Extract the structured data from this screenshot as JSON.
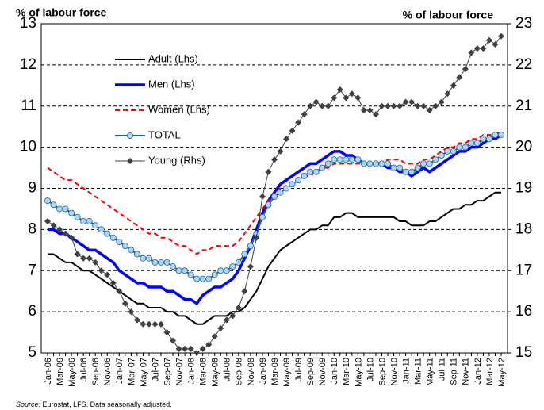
{
  "chart_data": {
    "type": "line",
    "y_label": "% of labour force",
    "y2_label": "% of labour force",
    "source": "Source:",
    "note": "Eurostat, LFS. Data seasonally adjusted.",
    "categories": [
      "Jan-06",
      null,
      "Mar-06",
      null,
      "May-06",
      null,
      "Jul-06",
      null,
      "Sep-06",
      null,
      "Nov-06",
      null,
      "Jan-07",
      null,
      "Mar-07",
      null,
      "May-07",
      null,
      "Jul-07",
      null,
      "Sep-07",
      null,
      "Nov-07",
      null,
      "Jan-08",
      null,
      "Mar-08",
      null,
      "May-08",
      null,
      "Jul-08",
      null,
      "Sep-08",
      null,
      "Nov-08",
      null,
      "Jan-09",
      null,
      "Mar-09",
      null,
      "May-09",
      null,
      "Jul-09",
      null,
      "Sep-09",
      null,
      "Nov-09",
      null,
      "Jan-10",
      null,
      "Mar-10",
      null,
      "May-10",
      null,
      "Jul-10",
      null,
      "Sep-10",
      null,
      "Nov-10",
      null,
      "Jan-11",
      null,
      "Mar-11",
      null,
      "May-11",
      null,
      "Jul-11",
      null,
      "Sep-11",
      null,
      "Nov-11",
      null,
      "Jan-12",
      null,
      "Mar-12",
      null,
      "May-12"
    ],
    "ylim": [
      5,
      13
    ],
    "yticks": [
      5,
      6,
      7,
      8,
      9,
      10,
      11,
      12,
      13
    ],
    "y2lim": [
      15,
      23
    ],
    "y2ticks": [
      15,
      16,
      17,
      18,
      19,
      20,
      21,
      22,
      23
    ],
    "grid": true,
    "legend": "upper left",
    "series": [
      {
        "name": "Adult (Lhs)",
        "color": "#000000",
        "line_width": 2,
        "values": [
          7.4,
          7.4,
          7.3,
          7.2,
          7.2,
          7.1,
          7.0,
          7.0,
          6.9,
          6.8,
          6.7,
          6.6,
          6.5,
          6.4,
          6.3,
          6.2,
          6.2,
          6.1,
          6.1,
          6.1,
          6.0,
          6.0,
          5.9,
          5.9,
          5.8,
          5.7,
          5.7,
          5.8,
          5.9,
          5.9,
          5.9,
          6.0,
          6.0,
          6.1,
          6.3,
          6.5,
          6.8,
          7.1,
          7.3,
          7.5,
          7.6,
          7.7,
          7.8,
          7.9,
          8.0,
          8.0,
          8.1,
          8.1,
          8.3,
          8.3,
          8.4,
          8.4,
          8.3,
          8.3,
          8.3,
          8.3,
          8.3,
          8.3,
          8.3,
          8.2,
          8.2,
          8.1,
          8.1,
          8.1,
          8.2,
          8.2,
          8.3,
          8.4,
          8.5,
          8.5,
          8.6,
          8.6,
          8.7,
          8.7,
          8.8,
          8.9,
          8.9
        ]
      },
      {
        "name": "Men (Lhs)",
        "color": "#0000ff",
        "line_width": 3.5,
        "values": [
          8.0,
          8.0,
          7.9,
          7.9,
          7.8,
          7.7,
          7.6,
          7.5,
          7.5,
          7.4,
          7.3,
          7.2,
          7.0,
          6.9,
          6.8,
          6.7,
          6.7,
          6.6,
          6.6,
          6.6,
          6.5,
          6.5,
          6.4,
          6.3,
          6.3,
          6.2,
          6.4,
          6.5,
          6.6,
          6.6,
          6.7,
          6.8,
          7.0,
          7.3,
          7.6,
          8.0,
          8.4,
          8.7,
          8.9,
          9.1,
          9.2,
          9.3,
          9.4,
          9.5,
          9.6,
          9.6,
          9.7,
          9.8,
          9.9,
          9.9,
          9.8,
          9.8,
          9.7,
          9.6,
          9.6,
          9.6,
          9.6,
          9.5,
          9.5,
          9.4,
          9.4,
          9.3,
          9.4,
          9.5,
          9.4,
          9.5,
          9.6,
          9.7,
          9.8,
          9.9,
          9.9,
          10.0,
          10.0,
          10.1,
          10.2,
          10.2,
          10.3
        ]
      },
      {
        "name": "Women (Lhs)",
        "color": "#ff0000",
        "line_width": 2,
        "dashed": true,
        "values": [
          9.5,
          9.4,
          9.3,
          9.2,
          9.2,
          9.1,
          9.0,
          8.9,
          8.8,
          8.7,
          8.6,
          8.5,
          8.4,
          8.3,
          8.2,
          8.1,
          8.0,
          7.9,
          7.9,
          7.8,
          7.8,
          7.7,
          7.6,
          7.6,
          7.5,
          7.4,
          7.5,
          7.5,
          7.6,
          7.6,
          7.6,
          7.6,
          7.7,
          7.9,
          8.1,
          8.3,
          8.5,
          8.7,
          8.9,
          9.0,
          9.0,
          9.1,
          9.2,
          9.3,
          9.3,
          9.4,
          9.5,
          9.5,
          9.6,
          9.6,
          9.6,
          9.6,
          9.6,
          9.6,
          9.6,
          9.6,
          9.6,
          9.7,
          9.7,
          9.7,
          9.6,
          9.6,
          9.6,
          9.7,
          9.7,
          9.8,
          9.9,
          10.0,
          10.0,
          10.1,
          10.1,
          10.2,
          10.2,
          10.3,
          10.3,
          10.3,
          10.4
        ]
      },
      {
        "name": "TOTAL",
        "color": "#1f5fa8",
        "marker": "circle",
        "marker_color": "#a9d8f0",
        "line_width": 2,
        "values": [
          8.7,
          8.6,
          8.5,
          8.5,
          8.4,
          8.3,
          8.2,
          8.2,
          8.1,
          8.0,
          7.9,
          7.8,
          7.7,
          7.6,
          7.5,
          7.4,
          7.3,
          7.3,
          7.2,
          7.2,
          7.2,
          7.1,
          7.0,
          7.0,
          6.9,
          6.8,
          6.8,
          6.8,
          6.9,
          7.0,
          7.0,
          7.1,
          7.2,
          7.4,
          7.6,
          7.9,
          8.3,
          8.6,
          8.8,
          8.9,
          9.0,
          9.1,
          9.2,
          9.3,
          9.4,
          9.4,
          9.5,
          9.6,
          9.7,
          9.7,
          9.7,
          9.7,
          9.7,
          9.6,
          9.6,
          9.6,
          9.6,
          9.6,
          9.5,
          9.5,
          9.4,
          9.4,
          9.5,
          9.6,
          9.6,
          9.7,
          9.8,
          9.9,
          9.9,
          10.0,
          10.0,
          10.1,
          10.1,
          10.2,
          10.2,
          10.3,
          10.3
        ]
      },
      {
        "name": "Young (Rhs)",
        "color": "#404040",
        "marker": "diamond",
        "marker_color": "#404040",
        "line_width": 1,
        "axis": "y2",
        "values": [
          18.2,
          18.1,
          18.0,
          17.9,
          17.8,
          17.4,
          17.3,
          17.3,
          17.2,
          17.0,
          16.9,
          16.7,
          16.5,
          16.2,
          16.0,
          15.8,
          15.7,
          15.7,
          15.7,
          15.7,
          15.5,
          15.3,
          15.1,
          15.1,
          15.1,
          15.0,
          15.1,
          15.2,
          15.4,
          15.6,
          15.8,
          15.9,
          16.1,
          16.5,
          17.1,
          17.8,
          18.8,
          19.4,
          19.7,
          19.9,
          20.2,
          20.4,
          20.6,
          20.8,
          21.0,
          21.1,
          21.0,
          21.0,
          21.2,
          21.4,
          21.2,
          21.3,
          21.2,
          20.9,
          20.9,
          20.8,
          21.0,
          21.0,
          21.0,
          21.0,
          21.1,
          21.1,
          21.0,
          21.0,
          20.9,
          21.0,
          21.1,
          21.3,
          21.5,
          21.7,
          21.9,
          22.3,
          22.4,
          22.4,
          22.6,
          22.5,
          22.7
        ]
      }
    ]
  }
}
